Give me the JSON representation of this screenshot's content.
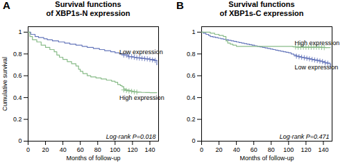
{
  "chart_data": [
    {
      "type": "step",
      "panel_label": "A",
      "title": "Survival functions\nof XBP1s-N expression",
      "xlabel": "Months of follow-up",
      "ylabel": "Cumulative survival",
      "xlim": [
        0,
        150
      ],
      "ylim": [
        0,
        1.05
      ],
      "xticks": [
        0,
        20,
        40,
        60,
        80,
        100,
        120,
        140
      ],
      "yticks": [
        0,
        0.2,
        0.4,
        0.6,
        0.8,
        1
      ],
      "series": [
        {
          "type": "step",
          "color": "#6677bb",
          "x": [
            0,
            3,
            8,
            12,
            18,
            22,
            28,
            35,
            42,
            48,
            55,
            62,
            68,
            75,
            82,
            88,
            95,
            100,
            105,
            110,
            115,
            120,
            125,
            130,
            135,
            140,
            145,
            148
          ],
          "values": [
            1.0,
            0.98,
            0.96,
            0.95,
            0.94,
            0.93,
            0.92,
            0.91,
            0.9,
            0.89,
            0.88,
            0.87,
            0.86,
            0.85,
            0.84,
            0.83,
            0.82,
            0.81,
            0.8,
            0.79,
            0.775,
            0.77,
            0.765,
            0.76,
            0.755,
            0.75,
            0.74,
            0.7
          ]
        },
        {
          "type": "step",
          "color": "#88bb88",
          "x": [
            0,
            2,
            5,
            10,
            15,
            20,
            25,
            30,
            33,
            36,
            40,
            45,
            50,
            55,
            58,
            60,
            63,
            68,
            72,
            78,
            84,
            90,
            96,
            100,
            103,
            106,
            108,
            110,
            112,
            115,
            118,
            120,
            125,
            130,
            135,
            140,
            145,
            148
          ],
          "values": [
            1.0,
            0.96,
            0.93,
            0.91,
            0.88,
            0.86,
            0.84,
            0.82,
            0.79,
            0.77,
            0.75,
            0.73,
            0.71,
            0.69,
            0.66,
            0.64,
            0.62,
            0.6,
            0.59,
            0.58,
            0.57,
            0.56,
            0.55,
            0.54,
            0.52,
            0.51,
            0.5,
            0.48,
            0.47,
            0.465,
            0.46,
            0.455,
            0.45,
            0.447,
            0.446,
            0.445,
            0.445,
            0.445
          ]
        },
        {
          "type": "scatter",
          "marker": "plus",
          "color": "#6677bb",
          "x": [
            110,
            113,
            116,
            119,
            122,
            125,
            128,
            131,
            134,
            137,
            140,
            143,
            146
          ],
          "values": [
            0.79,
            0.79,
            0.775,
            0.775,
            0.77,
            0.765,
            0.762,
            0.76,
            0.757,
            0.755,
            0.75,
            0.745,
            0.74
          ]
        },
        {
          "type": "scatter",
          "marker": "plus",
          "color": "#88bb88",
          "x": [
            110,
            113,
            116,
            119,
            122,
            125
          ],
          "values": [
            0.47,
            0.465,
            0.46,
            0.457,
            0.452,
            0.45
          ]
        }
      ],
      "annotations": [
        {
          "text": "Log-rank P=0.018"
        },
        {
          "text": "Low expression",
          "x": 105,
          "y": 0.82
        },
        {
          "text": "High expression",
          "x": 105,
          "y": 0.4
        }
      ]
    },
    {
      "type": "step",
      "panel_label": "B",
      "title": "Survival functions\nof XBP1s-C expression",
      "xlabel": "Months of follow-up",
      "xlim": [
        0,
        150
      ],
      "ylim": [
        0,
        1.05
      ],
      "xticks": [
        0,
        20,
        40,
        60,
        80,
        100,
        120,
        140
      ],
      "yticks": [
        0,
        0.2,
        0.4,
        0.6,
        0.8,
        1
      ],
      "series": [
        {
          "type": "step",
          "color": "#6677bb",
          "x": [
            0,
            2,
            5,
            8,
            10,
            13,
            16,
            19,
            22,
            25,
            28,
            31,
            34,
            37,
            40,
            43,
            46,
            49,
            52,
            55,
            58,
            61,
            64,
            67,
            70,
            73,
            76,
            79,
            82,
            85,
            88,
            91,
            94,
            97,
            100,
            103,
            106,
            109,
            112,
            115,
            118,
            121,
            124,
            127,
            130,
            133,
            136,
            139,
            142,
            145,
            148
          ],
          "values": [
            1.0,
            0.99,
            0.98,
            0.97,
            0.96,
            0.955,
            0.95,
            0.945,
            0.94,
            0.935,
            0.93,
            0.925,
            0.92,
            0.915,
            0.91,
            0.905,
            0.9,
            0.895,
            0.89,
            0.885,
            0.88,
            0.875,
            0.87,
            0.865,
            0.86,
            0.855,
            0.85,
            0.845,
            0.84,
            0.835,
            0.83,
            0.825,
            0.82,
            0.815,
            0.81,
            0.8,
            0.79,
            0.78,
            0.775,
            0.77,
            0.765,
            0.76,
            0.755,
            0.75,
            0.745,
            0.74,
            0.735,
            0.73,
            0.72,
            0.715,
            0.68
          ]
        },
        {
          "type": "step",
          "color": "#88bb88",
          "x": [
            0,
            5,
            10,
            15,
            20,
            25,
            28,
            30,
            33,
            36,
            40,
            45,
            50,
            55,
            60,
            65,
            70,
            75,
            80,
            85,
            90,
            95,
            100,
            105,
            108,
            110,
            115,
            120,
            125,
            130,
            135,
            140,
            143,
            145,
            148
          ],
          "values": [
            1.0,
            1.0,
            0.99,
            0.98,
            0.97,
            0.96,
            0.92,
            0.9,
            0.89,
            0.88,
            0.87,
            0.87,
            0.87,
            0.87,
            0.87,
            0.87,
            0.87,
            0.87,
            0.87,
            0.87,
            0.87,
            0.87,
            0.87,
            0.866,
            0.864,
            0.862,
            0.862,
            0.862,
            0.862,
            0.862,
            0.862,
            0.86,
            0.858,
            0.858,
            0.858
          ]
        },
        {
          "type": "scatter",
          "marker": "plus",
          "color": "#6677bb",
          "x": [
            109,
            112,
            115,
            118,
            121,
            124,
            127,
            130,
            133,
            136,
            139,
            142,
            145
          ],
          "values": [
            0.78,
            0.775,
            0.77,
            0.765,
            0.76,
            0.755,
            0.75,
            0.745,
            0.74,
            0.735,
            0.73,
            0.72,
            0.715
          ]
        },
        {
          "type": "scatter",
          "marker": "plus",
          "color": "#88bb88",
          "x": [
            108,
            111,
            114,
            117,
            120,
            123,
            126,
            129,
            132,
            135,
            138,
            141
          ],
          "values": [
            0.864,
            0.862,
            0.862,
            0.862,
            0.862,
            0.862,
            0.862,
            0.862,
            0.862,
            0.862,
            0.86,
            0.858
          ]
        }
      ],
      "annotations": [
        {
          "text": "Log-rank P=0.471"
        },
        {
          "text": "Low expression",
          "x": 107,
          "y": 0.68
        },
        {
          "text": "High expression",
          "x": 107,
          "y": 0.9
        }
      ]
    }
  ]
}
